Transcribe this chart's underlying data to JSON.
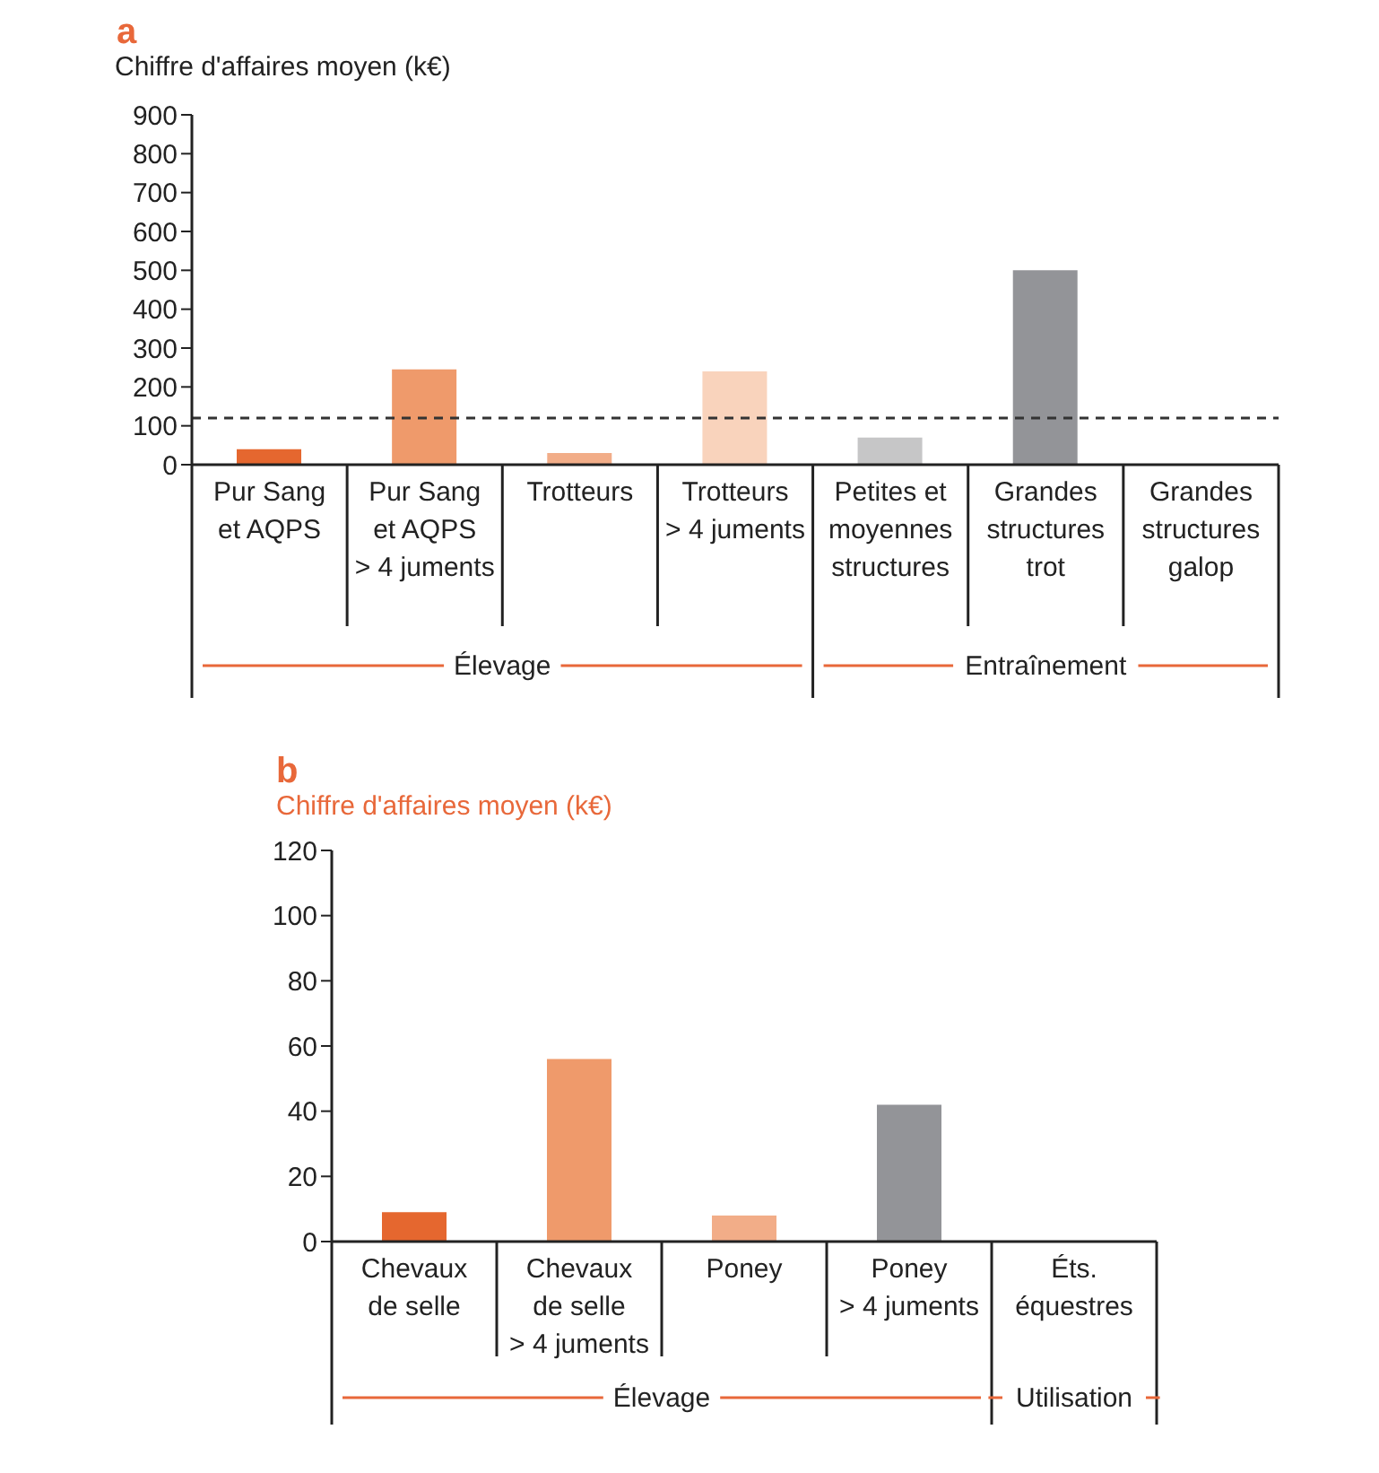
{
  "chart_data": [
    {
      "type": "bar",
      "title": "a",
      "ylabel": "Chiffre d'affaires moyen (k€)",
      "categories": [
        "Pur Sang et AQPS",
        "Pur Sang et AQPS > 4 juments",
        "Trotteurs",
        "Trotteurs > 4 juments",
        "Petites et moyennes structures",
        "Grandes structures trot",
        "Grandes structures galop"
      ],
      "values": [
        40,
        245,
        30,
        240,
        70,
        500,
        null
      ],
      "colors": [
        "#e5672f",
        "#ef9a6b",
        "#f2ad88",
        "#f9d3bc",
        "#c6c6c7",
        "#939498",
        "#939498"
      ],
      "ylim": [
        0,
        900
      ],
      "yticks": [
        0,
        100,
        200,
        300,
        400,
        500,
        600,
        700,
        800,
        900
      ],
      "grid": false,
      "legend": false,
      "ref_lines": [
        {
          "axis": "y",
          "value": 120,
          "color": "#333333",
          "line_style": "dashed"
        }
      ],
      "annotations": [
        "Élevage",
        "Entraînement"
      ]
    },
    {
      "type": "bar",
      "title": "b",
      "ylabel": "Chiffre d'affaires moyen (k€)",
      "categories": [
        "Chevaux de selle",
        "Chevaux de selle > 4 juments",
        "Poney",
        "Poney > 4 juments",
        "Éts. équestres"
      ],
      "values": [
        9,
        56,
        8,
        42,
        null
      ],
      "colors": [
        "#e5672f",
        "#ef9a6b",
        "#f2ad88",
        "#939498",
        "#939498"
      ],
      "ylim": [
        0,
        120
      ],
      "yticks": [
        0,
        20,
        40,
        60,
        80,
        100,
        120
      ],
      "grid": false,
      "legend": false,
      "annotations": [
        "Élevage",
        "Utilisation"
      ]
    }
  ]
}
